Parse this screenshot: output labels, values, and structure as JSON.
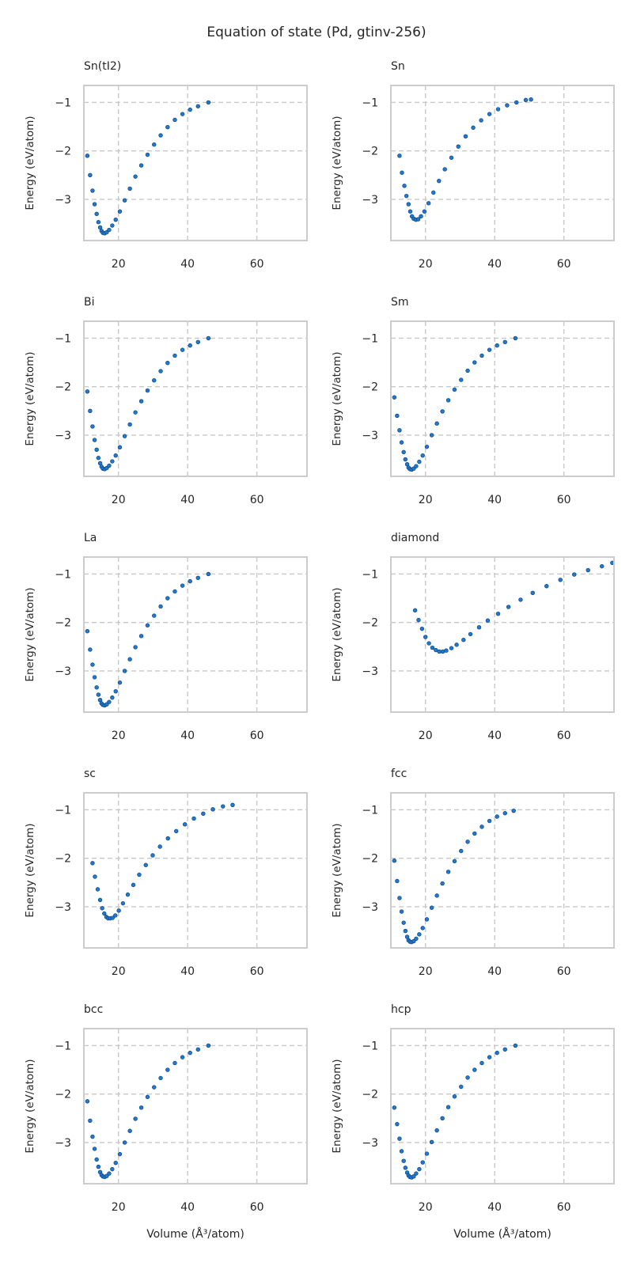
{
  "figure": {
    "title": "Equation of state (Pd, gtinv-256)",
    "ylabel": "Energy (eV/atom)",
    "xlabel": "Volume (Å³/atom)",
    "marker_color": "#1f78d1",
    "marker_edge_color": "#0b3f73",
    "grid_color": "#c8c8c8",
    "frame_color": "#cccccc"
  },
  "chart_data": [
    {
      "type": "scatter",
      "title": "Sn(tI2)",
      "xlim": [
        10,
        74.5
      ],
      "ylim": [
        -3.85,
        -0.65
      ],
      "xticks": [
        20,
        40,
        60
      ],
      "yticks": [
        -1,
        -2,
        -3
      ],
      "grid": true,
      "x": [
        11,
        11.8,
        12.5,
        13.1,
        13.7,
        14.2,
        14.7,
        15.1,
        15.5,
        16,
        16.6,
        17.3,
        18.2,
        19.2,
        20.4,
        21.8,
        23.3,
        24.9,
        26.6,
        28.4,
        30.3,
        32.2,
        34.2,
        36.3,
        38.5,
        40.7,
        43,
        46
      ],
      "y": [
        -2.1,
        -2.5,
        -2.82,
        -3.1,
        -3.3,
        -3.47,
        -3.58,
        -3.65,
        -3.69,
        -3.7,
        -3.68,
        -3.63,
        -3.54,
        -3.42,
        -3.25,
        -3.02,
        -2.78,
        -2.53,
        -2.3,
        -2.08,
        -1.87,
        -1.68,
        -1.51,
        -1.36,
        -1.24,
        -1.15,
        -1.08,
        -1.0
      ]
    },
    {
      "type": "scatter",
      "title": "Sn",
      "xlim": [
        10,
        74.5
      ],
      "ylim": [
        -3.85,
        -0.65
      ],
      "xticks": [
        20,
        40,
        60
      ],
      "yticks": [
        -1,
        -2,
        -3
      ],
      "grid": true,
      "x": [
        12.5,
        13.2,
        13.9,
        14.5,
        15.1,
        15.6,
        16.1,
        16.6,
        17.2,
        17.9,
        18.7,
        19.7,
        20.9,
        22.3,
        23.9,
        25.6,
        27.5,
        29.5,
        31.6,
        33.8,
        36.1,
        38.5,
        41,
        43.6,
        46.3,
        49,
        50.5
      ],
      "y": [
        -2.1,
        -2.45,
        -2.72,
        -2.93,
        -3.1,
        -3.25,
        -3.35,
        -3.4,
        -3.42,
        -3.41,
        -3.35,
        -3.25,
        -3.08,
        -2.86,
        -2.62,
        -2.38,
        -2.14,
        -1.91,
        -1.7,
        -1.52,
        -1.37,
        -1.24,
        -1.14,
        -1.06,
        -1.0,
        -0.95,
        -0.94
      ]
    },
    {
      "type": "scatter",
      "title": "Bi",
      "xlim": [
        10,
        74.5
      ],
      "ylim": [
        -3.85,
        -0.65
      ],
      "xticks": [
        20,
        40,
        60
      ],
      "yticks": [
        -1,
        -2,
        -3
      ],
      "grid": true,
      "x": [
        11,
        11.8,
        12.5,
        13.1,
        13.7,
        14.2,
        14.7,
        15.1,
        15.5,
        16,
        16.6,
        17.3,
        18.2,
        19.2,
        20.4,
        21.8,
        23.3,
        24.9,
        26.6,
        28.4,
        30.3,
        32.2,
        34.2,
        36.3,
        38.5,
        40.7,
        43,
        46
      ],
      "y": [
        -2.1,
        -2.5,
        -2.82,
        -3.1,
        -3.3,
        -3.47,
        -3.58,
        -3.65,
        -3.69,
        -3.7,
        -3.68,
        -3.63,
        -3.54,
        -3.42,
        -3.25,
        -3.02,
        -2.78,
        -2.53,
        -2.3,
        -2.08,
        -1.87,
        -1.68,
        -1.51,
        -1.36,
        -1.24,
        -1.15,
        -1.08,
        -1.0
      ]
    },
    {
      "type": "scatter",
      "title": "Sm",
      "xlim": [
        10,
        74.5
      ],
      "ylim": [
        -3.85,
        -0.65
      ],
      "xticks": [
        20,
        40,
        60
      ],
      "yticks": [
        -1,
        -2,
        -3
      ],
      "grid": true,
      "x": [
        11,
        11.8,
        12.5,
        13.1,
        13.7,
        14.2,
        14.7,
        15.1,
        15.5,
        16,
        16.6,
        17.3,
        18.2,
        19.2,
        20.4,
        21.8,
        23.3,
        24.9,
        26.6,
        28.4,
        30.3,
        32.2,
        34.2,
        36.3,
        38.5,
        40.7,
        43,
        46
      ],
      "y": [
        -2.22,
        -2.6,
        -2.9,
        -3.15,
        -3.35,
        -3.5,
        -3.6,
        -3.67,
        -3.7,
        -3.71,
        -3.69,
        -3.64,
        -3.55,
        -3.42,
        -3.24,
        -3.0,
        -2.76,
        -2.51,
        -2.28,
        -2.06,
        -1.86,
        -1.67,
        -1.5,
        -1.36,
        -1.24,
        -1.15,
        -1.08,
        -1.0
      ]
    },
    {
      "type": "scatter",
      "title": "La",
      "xlim": [
        10,
        74.5
      ],
      "ylim": [
        -3.85,
        -0.65
      ],
      "xticks": [
        20,
        40,
        60
      ],
      "yticks": [
        -1,
        -2,
        -3
      ],
      "grid": true,
      "x": [
        11,
        11.8,
        12.5,
        13.1,
        13.7,
        14.2,
        14.7,
        15.1,
        15.5,
        16,
        16.6,
        17.3,
        18.2,
        19.2,
        20.4,
        21.8,
        23.3,
        24.9,
        26.6,
        28.4,
        30.3,
        32.2,
        34.2,
        36.3,
        38.5,
        40.7,
        43,
        46
      ],
      "y": [
        -2.18,
        -2.56,
        -2.87,
        -3.13,
        -3.34,
        -3.49,
        -3.6,
        -3.67,
        -3.7,
        -3.71,
        -3.69,
        -3.64,
        -3.55,
        -3.42,
        -3.24,
        -3.0,
        -2.76,
        -2.51,
        -2.28,
        -2.06,
        -1.86,
        -1.67,
        -1.5,
        -1.36,
        -1.24,
        -1.15,
        -1.08,
        -1.0
      ]
    },
    {
      "type": "scatter",
      "title": "diamond",
      "xlim": [
        10,
        74.5
      ],
      "ylim": [
        -3.85,
        -0.65
      ],
      "xticks": [
        20,
        40,
        60
      ],
      "yticks": [
        -1,
        -2,
        -3
      ],
      "grid": true,
      "x": [
        17,
        18,
        19,
        20,
        21,
        22,
        23,
        24,
        25,
        26,
        27.5,
        29,
        31,
        33,
        35.5,
        38,
        41,
        44,
        47.5,
        51,
        55,
        59,
        63,
        67,
        71,
        74
      ],
      "y": [
        -1.75,
        -1.95,
        -2.13,
        -2.3,
        -2.43,
        -2.52,
        -2.57,
        -2.6,
        -2.6,
        -2.58,
        -2.53,
        -2.46,
        -2.36,
        -2.24,
        -2.1,
        -1.96,
        -1.82,
        -1.68,
        -1.53,
        -1.39,
        -1.25,
        -1.12,
        -1.01,
        -0.92,
        -0.84,
        -0.77
      ]
    },
    {
      "type": "scatter",
      "title": "sc",
      "xlim": [
        10,
        74.5
      ],
      "ylim": [
        -3.85,
        -0.65
      ],
      "xticks": [
        20,
        40,
        60
      ],
      "yticks": [
        -1,
        -2,
        -3
      ],
      "grid": true,
      "x": [
        12.5,
        13.2,
        14,
        14.7,
        15.3,
        15.9,
        16.5,
        17,
        17.6,
        18.3,
        19.1,
        20.1,
        21.3,
        22.7,
        24.3,
        26,
        27.9,
        29.9,
        32,
        34.3,
        36.7,
        39.2,
        41.8,
        44.5,
        47.3,
        50.2,
        53
      ],
      "y": [
        -2.1,
        -2.38,
        -2.64,
        -2.86,
        -3.03,
        -3.14,
        -3.21,
        -3.24,
        -3.24,
        -3.23,
        -3.18,
        -3.08,
        -2.93,
        -2.75,
        -2.55,
        -2.34,
        -2.14,
        -1.94,
        -1.76,
        -1.59,
        -1.44,
        -1.3,
        -1.18,
        -1.08,
        -0.99,
        -0.93,
        -0.9
      ]
    },
    {
      "type": "scatter",
      "title": "fcc",
      "xlim": [
        10,
        74.5
      ],
      "ylim": [
        -3.85,
        -0.65
      ],
      "xticks": [
        20,
        40,
        60
      ],
      "yticks": [
        -1,
        -2,
        -3
      ],
      "grid": true,
      "x": [
        11,
        11.8,
        12.5,
        13.1,
        13.7,
        14.2,
        14.7,
        15.1,
        15.5,
        16,
        16.6,
        17.3,
        18.2,
        19.2,
        20.4,
        21.8,
        23.3,
        24.9,
        26.6,
        28.4,
        30.3,
        32.2,
        34.2,
        36.3,
        38.5,
        40.7,
        43,
        45.5
      ],
      "y": [
        -2.05,
        -2.47,
        -2.82,
        -3.1,
        -3.33,
        -3.5,
        -3.62,
        -3.69,
        -3.72,
        -3.73,
        -3.71,
        -3.66,
        -3.57,
        -3.44,
        -3.26,
        -3.02,
        -2.77,
        -2.52,
        -2.28,
        -2.06,
        -1.85,
        -1.66,
        -1.49,
        -1.35,
        -1.23,
        -1.14,
        -1.07,
        -1.02
      ]
    },
    {
      "type": "scatter",
      "title": "bcc",
      "xlim": [
        10,
        74.5
      ],
      "ylim": [
        -3.85,
        -0.65
      ],
      "xticks": [
        20,
        40,
        60
      ],
      "yticks": [
        -1,
        -2,
        -3
      ],
      "grid": true,
      "x": [
        11,
        11.8,
        12.5,
        13.1,
        13.7,
        14.2,
        14.7,
        15.1,
        15.5,
        16,
        16.6,
        17.3,
        18.2,
        19.2,
        20.4,
        21.8,
        23.3,
        24.9,
        26.6,
        28.4,
        30.3,
        32.2,
        34.2,
        36.3,
        38.5,
        40.7,
        43,
        46
      ],
      "y": [
        -2.15,
        -2.55,
        -2.88,
        -3.13,
        -3.35,
        -3.5,
        -3.61,
        -3.67,
        -3.7,
        -3.71,
        -3.69,
        -3.64,
        -3.55,
        -3.42,
        -3.24,
        -3.0,
        -2.76,
        -2.51,
        -2.28,
        -2.06,
        -1.86,
        -1.67,
        -1.5,
        -1.36,
        -1.24,
        -1.15,
        -1.08,
        -1.0
      ]
    },
    {
      "type": "scatter",
      "title": "hcp",
      "xlim": [
        10,
        74.5
      ],
      "ylim": [
        -3.85,
        -0.65
      ],
      "xticks": [
        20,
        40,
        60
      ],
      "yticks": [
        -1,
        -2,
        -3
      ],
      "grid": true,
      "x": [
        11,
        11.8,
        12.5,
        13.1,
        13.7,
        14.2,
        14.7,
        15.1,
        15.5,
        16,
        16.6,
        17.3,
        18.2,
        19.2,
        20.4,
        21.8,
        23.3,
        24.9,
        26.6,
        28.4,
        30.3,
        32.2,
        34.2,
        36.3,
        38.5,
        40.7,
        43,
        46
      ],
      "y": [
        -2.28,
        -2.62,
        -2.92,
        -3.18,
        -3.38,
        -3.52,
        -3.62,
        -3.68,
        -3.71,
        -3.72,
        -3.7,
        -3.64,
        -3.55,
        -3.41,
        -3.23,
        -2.99,
        -2.75,
        -2.5,
        -2.27,
        -2.05,
        -1.85,
        -1.66,
        -1.5,
        -1.36,
        -1.24,
        -1.15,
        -1.08,
        -1.0
      ]
    }
  ]
}
